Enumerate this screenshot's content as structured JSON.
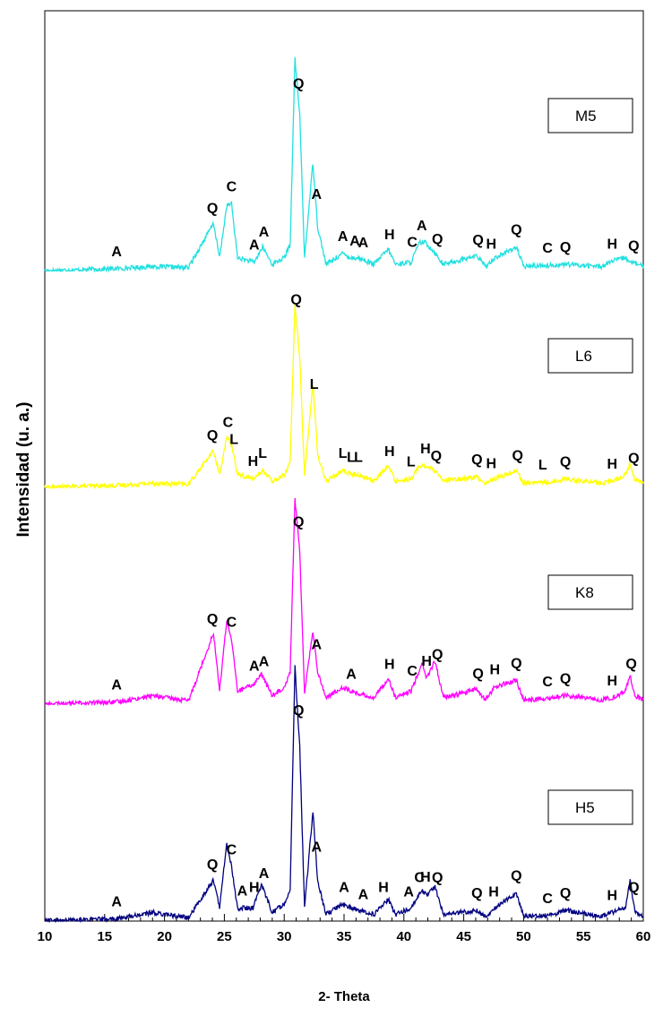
{
  "chart_data": {
    "type": "line",
    "xlabel": "2- Theta",
    "ylabel": "Intensidad (u. a.)",
    "xlim": [
      10,
      60
    ],
    "x_ticks": [
      10,
      15,
      20,
      25,
      30,
      35,
      40,
      45,
      50,
      55,
      60
    ],
    "grid": false,
    "stacked_offset_plot": true,
    "series": [
      {
        "name": "M5",
        "color": "#22e0e0",
        "offset": 3000,
        "points": [
          [
            10,
            0
          ],
          [
            16,
            10
          ],
          [
            19,
            20
          ],
          [
            22,
            15
          ],
          [
            24.1,
            220
          ],
          [
            24.6,
            60
          ],
          [
            25.2,
            300
          ],
          [
            25.6,
            310
          ],
          [
            26.1,
            60
          ],
          [
            27.5,
            40
          ],
          [
            28.2,
            110
          ],
          [
            29.0,
            30
          ],
          [
            30.0,
            60
          ],
          [
            30.5,
            120
          ],
          [
            30.9,
            980
          ],
          [
            31.3,
            720
          ],
          [
            31.7,
            60
          ],
          [
            32.4,
            500
          ],
          [
            32.8,
            200
          ],
          [
            33.5,
            30
          ],
          [
            34.9,
            80
          ],
          [
            35.6,
            60
          ],
          [
            36.2,
            60
          ],
          [
            37.5,
            30
          ],
          [
            38.7,
            100
          ],
          [
            39.3,
            30
          ],
          [
            40.6,
            40
          ],
          [
            41.3,
            130
          ],
          [
            41.8,
            130
          ],
          [
            42.5,
            90
          ],
          [
            43.3,
            30
          ],
          [
            46.1,
            70
          ],
          [
            46.8,
            20
          ],
          [
            47.6,
            60
          ],
          [
            49.4,
            110
          ],
          [
            50.0,
            20
          ],
          [
            51.5,
            25
          ],
          [
            52.1,
            25
          ],
          [
            53.5,
            30
          ],
          [
            56.5,
            20
          ],
          [
            57.4,
            45
          ],
          [
            58.5,
            60
          ],
          [
            59.0,
            40
          ],
          [
            60,
            20
          ]
        ],
        "peak_labels": [
          [
            16.0,
            "A"
          ],
          [
            24.0,
            "Q"
          ],
          [
            25.6,
            "C"
          ],
          [
            27.5,
            "A"
          ],
          [
            28.3,
            "A"
          ],
          [
            31.2,
            "Q"
          ],
          [
            32.7,
            "A"
          ],
          [
            34.9,
            "A"
          ],
          [
            35.9,
            "A"
          ],
          [
            36.6,
            "A"
          ],
          [
            38.8,
            "H"
          ],
          [
            40.7,
            "C"
          ],
          [
            41.5,
            "A"
          ],
          [
            42.8,
            "Q"
          ],
          [
            46.2,
            "Q"
          ],
          [
            47.3,
            "H"
          ],
          [
            49.4,
            "Q"
          ],
          [
            52.0,
            "C"
          ],
          [
            53.5,
            "Q"
          ],
          [
            57.4,
            "H"
          ],
          [
            59.2,
            "Q"
          ]
        ]
      },
      {
        "name": "L6",
        "color": "#ffff00",
        "offset": 2000,
        "points": [
          [
            10,
            0
          ],
          [
            16,
            10
          ],
          [
            19,
            20
          ],
          [
            22,
            15
          ],
          [
            24.1,
            170
          ],
          [
            24.6,
            60
          ],
          [
            25.2,
            230
          ],
          [
            25.6,
            200
          ],
          [
            26.1,
            60
          ],
          [
            27.5,
            40
          ],
          [
            28.2,
            80
          ],
          [
            29.0,
            30
          ],
          [
            30.0,
            60
          ],
          [
            30.5,
            120
          ],
          [
            30.9,
            850
          ],
          [
            31.3,
            600
          ],
          [
            31.7,
            60
          ],
          [
            32.4,
            480
          ],
          [
            32.8,
            150
          ],
          [
            33.5,
            30
          ],
          [
            34.9,
            80
          ],
          [
            35.6,
            60
          ],
          [
            36.2,
            60
          ],
          [
            37.5,
            30
          ],
          [
            38.7,
            100
          ],
          [
            39.3,
            30
          ],
          [
            40.6,
            40
          ],
          [
            41.3,
            100
          ],
          [
            41.8,
            100
          ],
          [
            42.5,
            80
          ],
          [
            43.3,
            30
          ],
          [
            46.1,
            50
          ],
          [
            46.8,
            20
          ],
          [
            47.6,
            40
          ],
          [
            49.4,
            80
          ],
          [
            50.0,
            20
          ],
          [
            51.5,
            25
          ],
          [
            52.1,
            25
          ],
          [
            53.5,
            40
          ],
          [
            56.5,
            20
          ],
          [
            57.4,
            30
          ],
          [
            58.5,
            60
          ],
          [
            58.9,
            110
          ],
          [
            59.3,
            40
          ],
          [
            60,
            20
          ]
        ],
        "peak_labels": [
          [
            24.0,
            "Q"
          ],
          [
            25.3,
            "C"
          ],
          [
            25.8,
            "L"
          ],
          [
            27.4,
            "H"
          ],
          [
            28.2,
            "L"
          ],
          [
            31.0,
            "Q"
          ],
          [
            32.5,
            "L"
          ],
          [
            34.9,
            "L"
          ],
          [
            35.6,
            "L"
          ],
          [
            36.2,
            "L"
          ],
          [
            38.8,
            "H"
          ],
          [
            40.6,
            "L"
          ],
          [
            41.8,
            "H"
          ],
          [
            42.7,
            "Q"
          ],
          [
            46.1,
            "Q"
          ],
          [
            47.3,
            "H"
          ],
          [
            49.5,
            "Q"
          ],
          [
            51.6,
            "L"
          ],
          [
            53.5,
            "Q"
          ],
          [
            57.4,
            "H"
          ],
          [
            59.2,
            "Q"
          ]
        ]
      },
      {
        "name": "K8",
        "color": "#ff00ff",
        "offset": 1000,
        "points": [
          [
            10,
            0
          ],
          [
            16,
            10
          ],
          [
            19,
            40
          ],
          [
            22,
            15
          ],
          [
            24.1,
            330
          ],
          [
            24.6,
            60
          ],
          [
            25.2,
            390
          ],
          [
            25.6,
            300
          ],
          [
            26.1,
            60
          ],
          [
            27.4,
            90
          ],
          [
            28.1,
            140
          ],
          [
            29.0,
            40
          ],
          [
            30.0,
            80
          ],
          [
            30.5,
            150
          ],
          [
            30.9,
            950
          ],
          [
            31.3,
            700
          ],
          [
            31.7,
            60
          ],
          [
            32.4,
            340
          ],
          [
            32.8,
            150
          ],
          [
            33.5,
            30
          ],
          [
            34.9,
            80
          ],
          [
            35.6,
            60
          ],
          [
            36.2,
            50
          ],
          [
            37.5,
            30
          ],
          [
            38.7,
            120
          ],
          [
            39.3,
            30
          ],
          [
            40.6,
            60
          ],
          [
            41.5,
            190
          ],
          [
            41.9,
            120
          ],
          [
            42.6,
            200
          ],
          [
            43.3,
            30
          ],
          [
            46.1,
            70
          ],
          [
            46.8,
            20
          ],
          [
            47.6,
            80
          ],
          [
            49.4,
            110
          ],
          [
            50.0,
            20
          ],
          [
            51.5,
            25
          ],
          [
            52.1,
            25
          ],
          [
            53.5,
            40
          ],
          [
            56.5,
            20
          ],
          [
            57.4,
            30
          ],
          [
            58.5,
            60
          ],
          [
            58.9,
            130
          ],
          [
            59.3,
            40
          ],
          [
            60,
            20
          ]
        ],
        "peak_labels": [
          [
            16.0,
            "A"
          ],
          [
            24.0,
            "Q"
          ],
          [
            25.6,
            "C"
          ],
          [
            27.5,
            "A"
          ],
          [
            28.3,
            "A"
          ],
          [
            31.2,
            "Q"
          ],
          [
            32.7,
            "A"
          ],
          [
            35.6,
            "A"
          ],
          [
            38.8,
            "H"
          ],
          [
            40.7,
            "C"
          ],
          [
            41.9,
            "H"
          ],
          [
            42.8,
            "Q"
          ],
          [
            46.2,
            "Q"
          ],
          [
            47.6,
            "H"
          ],
          [
            49.4,
            "Q"
          ],
          [
            52.0,
            "C"
          ],
          [
            53.5,
            "Q"
          ],
          [
            57.4,
            "H"
          ],
          [
            59.0,
            "Q"
          ]
        ]
      },
      {
        "name": "H5",
        "color": "#000080",
        "offset": 0,
        "points": [
          [
            10,
            0
          ],
          [
            16,
            10
          ],
          [
            19,
            40
          ],
          [
            22,
            15
          ],
          [
            24.1,
            190
          ],
          [
            24.6,
            60
          ],
          [
            25.2,
            360
          ],
          [
            25.6,
            250
          ],
          [
            26.1,
            60
          ],
          [
            27.4,
            60
          ],
          [
            28.1,
            170
          ],
          [
            29.0,
            40
          ],
          [
            30.0,
            80
          ],
          [
            30.5,
            150
          ],
          [
            30.9,
            1170
          ],
          [
            31.3,
            800
          ],
          [
            31.7,
            60
          ],
          [
            32.4,
            510
          ],
          [
            32.8,
            180
          ],
          [
            33.5,
            30
          ],
          [
            34.9,
            80
          ],
          [
            35.6,
            60
          ],
          [
            36.2,
            50
          ],
          [
            37.5,
            30
          ],
          [
            38.7,
            100
          ],
          [
            39.3,
            30
          ],
          [
            40.6,
            60
          ],
          [
            41.5,
            140
          ],
          [
            41.9,
            120
          ],
          [
            42.6,
            160
          ],
          [
            43.3,
            30
          ],
          [
            46.1,
            50
          ],
          [
            46.8,
            20
          ],
          [
            47.6,
            60
          ],
          [
            49.4,
            130
          ],
          [
            50.0,
            20
          ],
          [
            51.5,
            25
          ],
          [
            52.1,
            25
          ],
          [
            53.5,
            50
          ],
          [
            56.5,
            20
          ],
          [
            57.4,
            40
          ],
          [
            58.5,
            60
          ],
          [
            58.9,
            190
          ],
          [
            59.3,
            40
          ],
          [
            60,
            20
          ]
        ],
        "peak_labels": [
          [
            16.0,
            "A"
          ],
          [
            24.0,
            "Q"
          ],
          [
            25.6,
            "C"
          ],
          [
            26.5,
            "A"
          ],
          [
            27.5,
            "H"
          ],
          [
            28.3,
            "A"
          ],
          [
            31.2,
            "Q"
          ],
          [
            32.7,
            "A"
          ],
          [
            35.0,
            "A"
          ],
          [
            36.6,
            "A"
          ],
          [
            38.3,
            "H"
          ],
          [
            40.4,
            "A"
          ],
          [
            41.3,
            "C"
          ],
          [
            41.8,
            "H"
          ],
          [
            42.8,
            "Q"
          ],
          [
            46.1,
            "Q"
          ],
          [
            47.5,
            "H"
          ],
          [
            49.4,
            "Q"
          ],
          [
            52.0,
            "C"
          ],
          [
            53.5,
            "Q"
          ],
          [
            57.4,
            "H"
          ],
          [
            59.2,
            "Q"
          ]
        ]
      }
    ]
  }
}
